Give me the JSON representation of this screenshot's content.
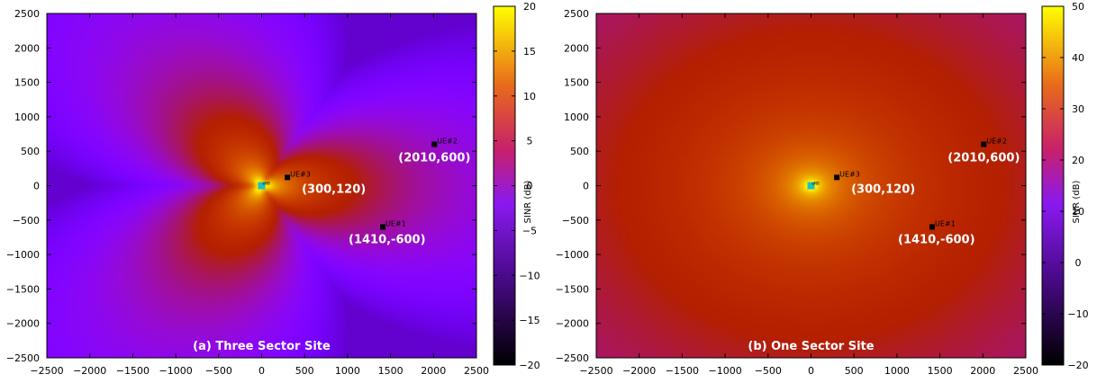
{
  "chart_data": [
    {
      "type": "heatmap",
      "title": "(a) Three Sector Site",
      "xlim": [
        -2500,
        2500
      ],
      "ylim": [
        -2500,
        2500
      ],
      "xticks": [
        -2500,
        -2000,
        -1500,
        -1000,
        -500,
        0,
        500,
        1000,
        1500,
        2000,
        2500
      ],
      "yticks": [
        -2500,
        -2000,
        -1500,
        -1000,
        -500,
        0,
        500,
        1000,
        1500,
        2000,
        2500
      ],
      "colorbar": {
        "label": "SINR (dB)",
        "min": -20,
        "max": 20,
        "ticks": [
          -20,
          -15,
          -10,
          -5,
          0,
          5,
          10,
          15,
          20
        ]
      },
      "site": {
        "x": 0,
        "y": 0,
        "label": "eNB"
      },
      "ues": [
        {
          "name": "UE#1",
          "x": 1410,
          "y": -600,
          "coord_label": "(1410,-600)"
        },
        {
          "name": "UE#2",
          "x": 2010,
          "y": 600,
          "coord_label": "(2010,600)"
        },
        {
          "name": "UE#3",
          "x": 300,
          "y": 120,
          "coord_label": "(300,120)"
        }
      ],
      "grid": false
    },
    {
      "type": "heatmap",
      "title": "(b) One Sector Site",
      "xlim": [
        -2500,
        2500
      ],
      "ylim": [
        -2500,
        2500
      ],
      "xticks": [
        -2500,
        -2000,
        -1500,
        -1000,
        -500,
        0,
        500,
        1000,
        1500,
        2000,
        2500
      ],
      "yticks": [
        -2500,
        -2000,
        -1500,
        -1000,
        -500,
        0,
        500,
        1000,
        1500,
        2000,
        2500
      ],
      "colorbar": {
        "label": "SINR (dB)",
        "min": -20,
        "max": 50,
        "ticks": [
          -20,
          -10,
          0,
          10,
          20,
          30,
          40,
          50
        ]
      },
      "site": {
        "x": 0,
        "y": 0,
        "label": "eNB"
      },
      "ues": [
        {
          "name": "UE#1",
          "x": 1410,
          "y": -600,
          "coord_label": "(1410,-600)"
        },
        {
          "name": "UE#2",
          "x": 2010,
          "y": 600,
          "coord_label": "(2010,600)"
        },
        {
          "name": "UE#3",
          "x": 300,
          "y": 120,
          "coord_label": "(300,120)"
        }
      ],
      "grid": false
    }
  ]
}
